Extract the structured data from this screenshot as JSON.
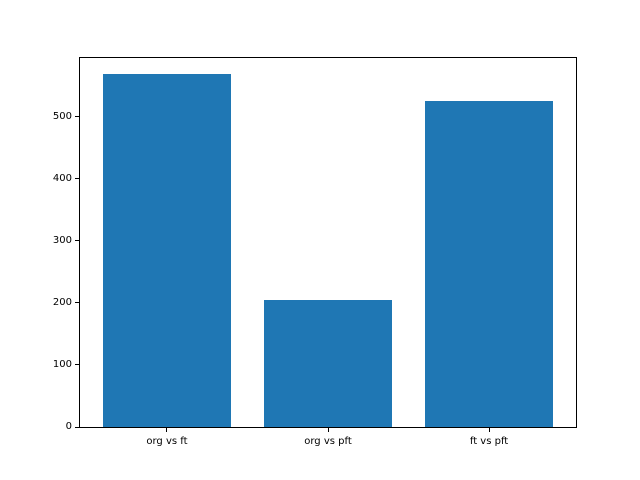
{
  "chart_data": {
    "type": "bar",
    "title": "",
    "xlabel": "",
    "ylabel": "",
    "categories": [
      "org vs ft",
      "org vs pft",
      "ft vs pft"
    ],
    "values": [
      570,
      205,
      525
    ],
    "yticks": [
      0,
      100,
      200,
      300,
      400,
      500
    ],
    "ylim": [
      0,
      595
    ],
    "grid": false,
    "legend": "none",
    "bar_color": "#1f77b4",
    "background_color": "#ffffff",
    "spine_color": "#000000"
  }
}
